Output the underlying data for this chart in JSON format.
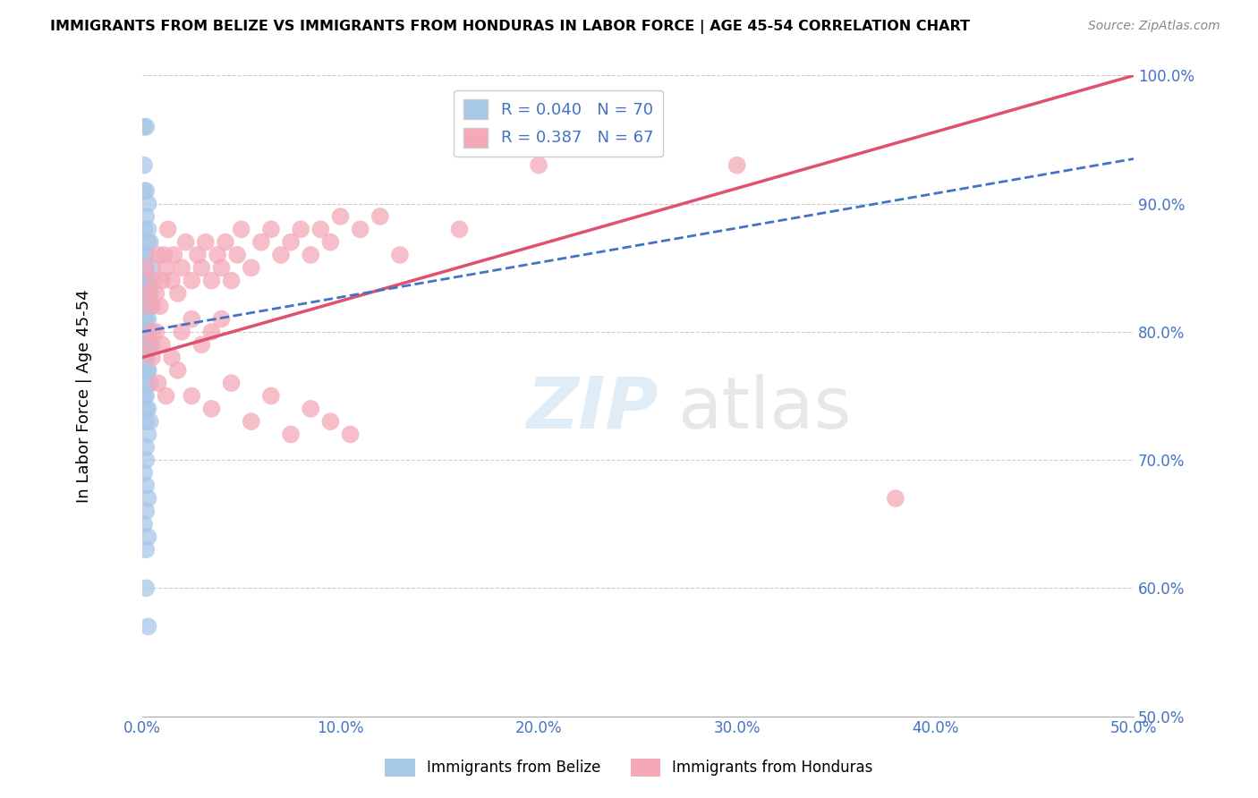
{
  "title": "IMMIGRANTS FROM BELIZE VS IMMIGRANTS FROM HONDURAS IN LABOR FORCE | AGE 45-54 CORRELATION CHART",
  "source": "Source: ZipAtlas.com",
  "ylabel": "In Labor Force | Age 45-54",
  "legend_belize": "Immigrants from Belize",
  "legend_honduras": "Immigrants from Honduras",
  "R_belize": 0.04,
  "N_belize": 70,
  "R_honduras": 0.387,
  "N_honduras": 67,
  "belize_color": "#a8c8e8",
  "honduras_color": "#f4a8b8",
  "belize_line_color": "#4472c4",
  "honduras_line_color": "#e05070",
  "xlim": [
    0.0,
    0.5
  ],
  "ylim": [
    0.5,
    1.0
  ],
  "xtick_labels": [
    "0.0%",
    "10.0%",
    "20.0%",
    "30.0%",
    "40.0%",
    "50.0%"
  ],
  "ytick_labels": [
    "50.0%",
    "60.0%",
    "70.0%",
    "80.0%",
    "90.0%",
    "100.0%"
  ],
  "belize_x": [
    0.001,
    0.002,
    0.001,
    0.001,
    0.002,
    0.003,
    0.002,
    0.001,
    0.003,
    0.004,
    0.003,
    0.002,
    0.002,
    0.001,
    0.005,
    0.003,
    0.002,
    0.002,
    0.004,
    0.001,
    0.001,
    0.002,
    0.002,
    0.003,
    0.005,
    0.002,
    0.002,
    0.003,
    0.001,
    0.001,
    0.001,
    0.002,
    0.002,
    0.003,
    0.002,
    0.002,
    0.003,
    0.001,
    0.001,
    0.004,
    0.005,
    0.003,
    0.002,
    0.002,
    0.002,
    0.002,
    0.001,
    0.003,
    0.003,
    0.001,
    0.004,
    0.002,
    0.002,
    0.001,
    0.002,
    0.003,
    0.002,
    0.004,
    0.003,
    0.002,
    0.002,
    0.001,
    0.002,
    0.003,
    0.002,
    0.001,
    0.003,
    0.002,
    0.002,
    0.003
  ],
  "belize_y": [
    0.96,
    0.96,
    0.93,
    0.91,
    0.91,
    0.9,
    0.89,
    0.88,
    0.88,
    0.87,
    0.87,
    0.86,
    0.86,
    0.85,
    0.85,
    0.84,
    0.84,
    0.84,
    0.83,
    0.83,
    0.83,
    0.83,
    0.82,
    0.82,
    0.82,
    0.82,
    0.81,
    0.81,
    0.81,
    0.81,
    0.8,
    0.8,
    0.8,
    0.8,
    0.8,
    0.8,
    0.79,
    0.79,
    0.79,
    0.79,
    0.79,
    0.79,
    0.78,
    0.78,
    0.78,
    0.78,
    0.77,
    0.77,
    0.77,
    0.77,
    0.76,
    0.76,
    0.75,
    0.75,
    0.74,
    0.74,
    0.73,
    0.73,
    0.72,
    0.71,
    0.7,
    0.69,
    0.68,
    0.67,
    0.66,
    0.65,
    0.64,
    0.63,
    0.6,
    0.57
  ],
  "honduras_x": [
    0.002,
    0.003,
    0.004,
    0.005,
    0.006,
    0.007,
    0.008,
    0.009,
    0.01,
    0.011,
    0.012,
    0.013,
    0.015,
    0.016,
    0.018,
    0.02,
    0.022,
    0.025,
    0.028,
    0.03,
    0.032,
    0.035,
    0.038,
    0.04,
    0.042,
    0.045,
    0.048,
    0.05,
    0.055,
    0.06,
    0.065,
    0.07,
    0.075,
    0.08,
    0.085,
    0.09,
    0.095,
    0.1,
    0.11,
    0.12,
    0.003,
    0.005,
    0.007,
    0.01,
    0.015,
    0.02,
    0.025,
    0.03,
    0.035,
    0.04,
    0.008,
    0.012,
    0.018,
    0.025,
    0.035,
    0.045,
    0.055,
    0.065,
    0.075,
    0.085,
    0.095,
    0.105,
    0.13,
    0.16,
    0.2,
    0.3,
    0.38
  ],
  "honduras_y": [
    0.85,
    0.83,
    0.82,
    0.8,
    0.84,
    0.83,
    0.86,
    0.82,
    0.84,
    0.86,
    0.85,
    0.88,
    0.84,
    0.86,
    0.83,
    0.85,
    0.87,
    0.84,
    0.86,
    0.85,
    0.87,
    0.84,
    0.86,
    0.85,
    0.87,
    0.84,
    0.86,
    0.88,
    0.85,
    0.87,
    0.88,
    0.86,
    0.87,
    0.88,
    0.86,
    0.88,
    0.87,
    0.89,
    0.88,
    0.89,
    0.79,
    0.78,
    0.8,
    0.79,
    0.78,
    0.8,
    0.81,
    0.79,
    0.8,
    0.81,
    0.76,
    0.75,
    0.77,
    0.75,
    0.74,
    0.76,
    0.73,
    0.75,
    0.72,
    0.74,
    0.73,
    0.72,
    0.86,
    0.88,
    0.93,
    0.93,
    0.67
  ],
  "honduras_line_x0": 0.0,
  "honduras_line_y0": 0.78,
  "honduras_line_x1": 0.5,
  "honduras_line_y1": 1.0,
  "belize_line_x0": 0.0,
  "belize_line_y0": 0.8,
  "belize_line_x1": 0.5,
  "belize_line_y1": 0.935
}
